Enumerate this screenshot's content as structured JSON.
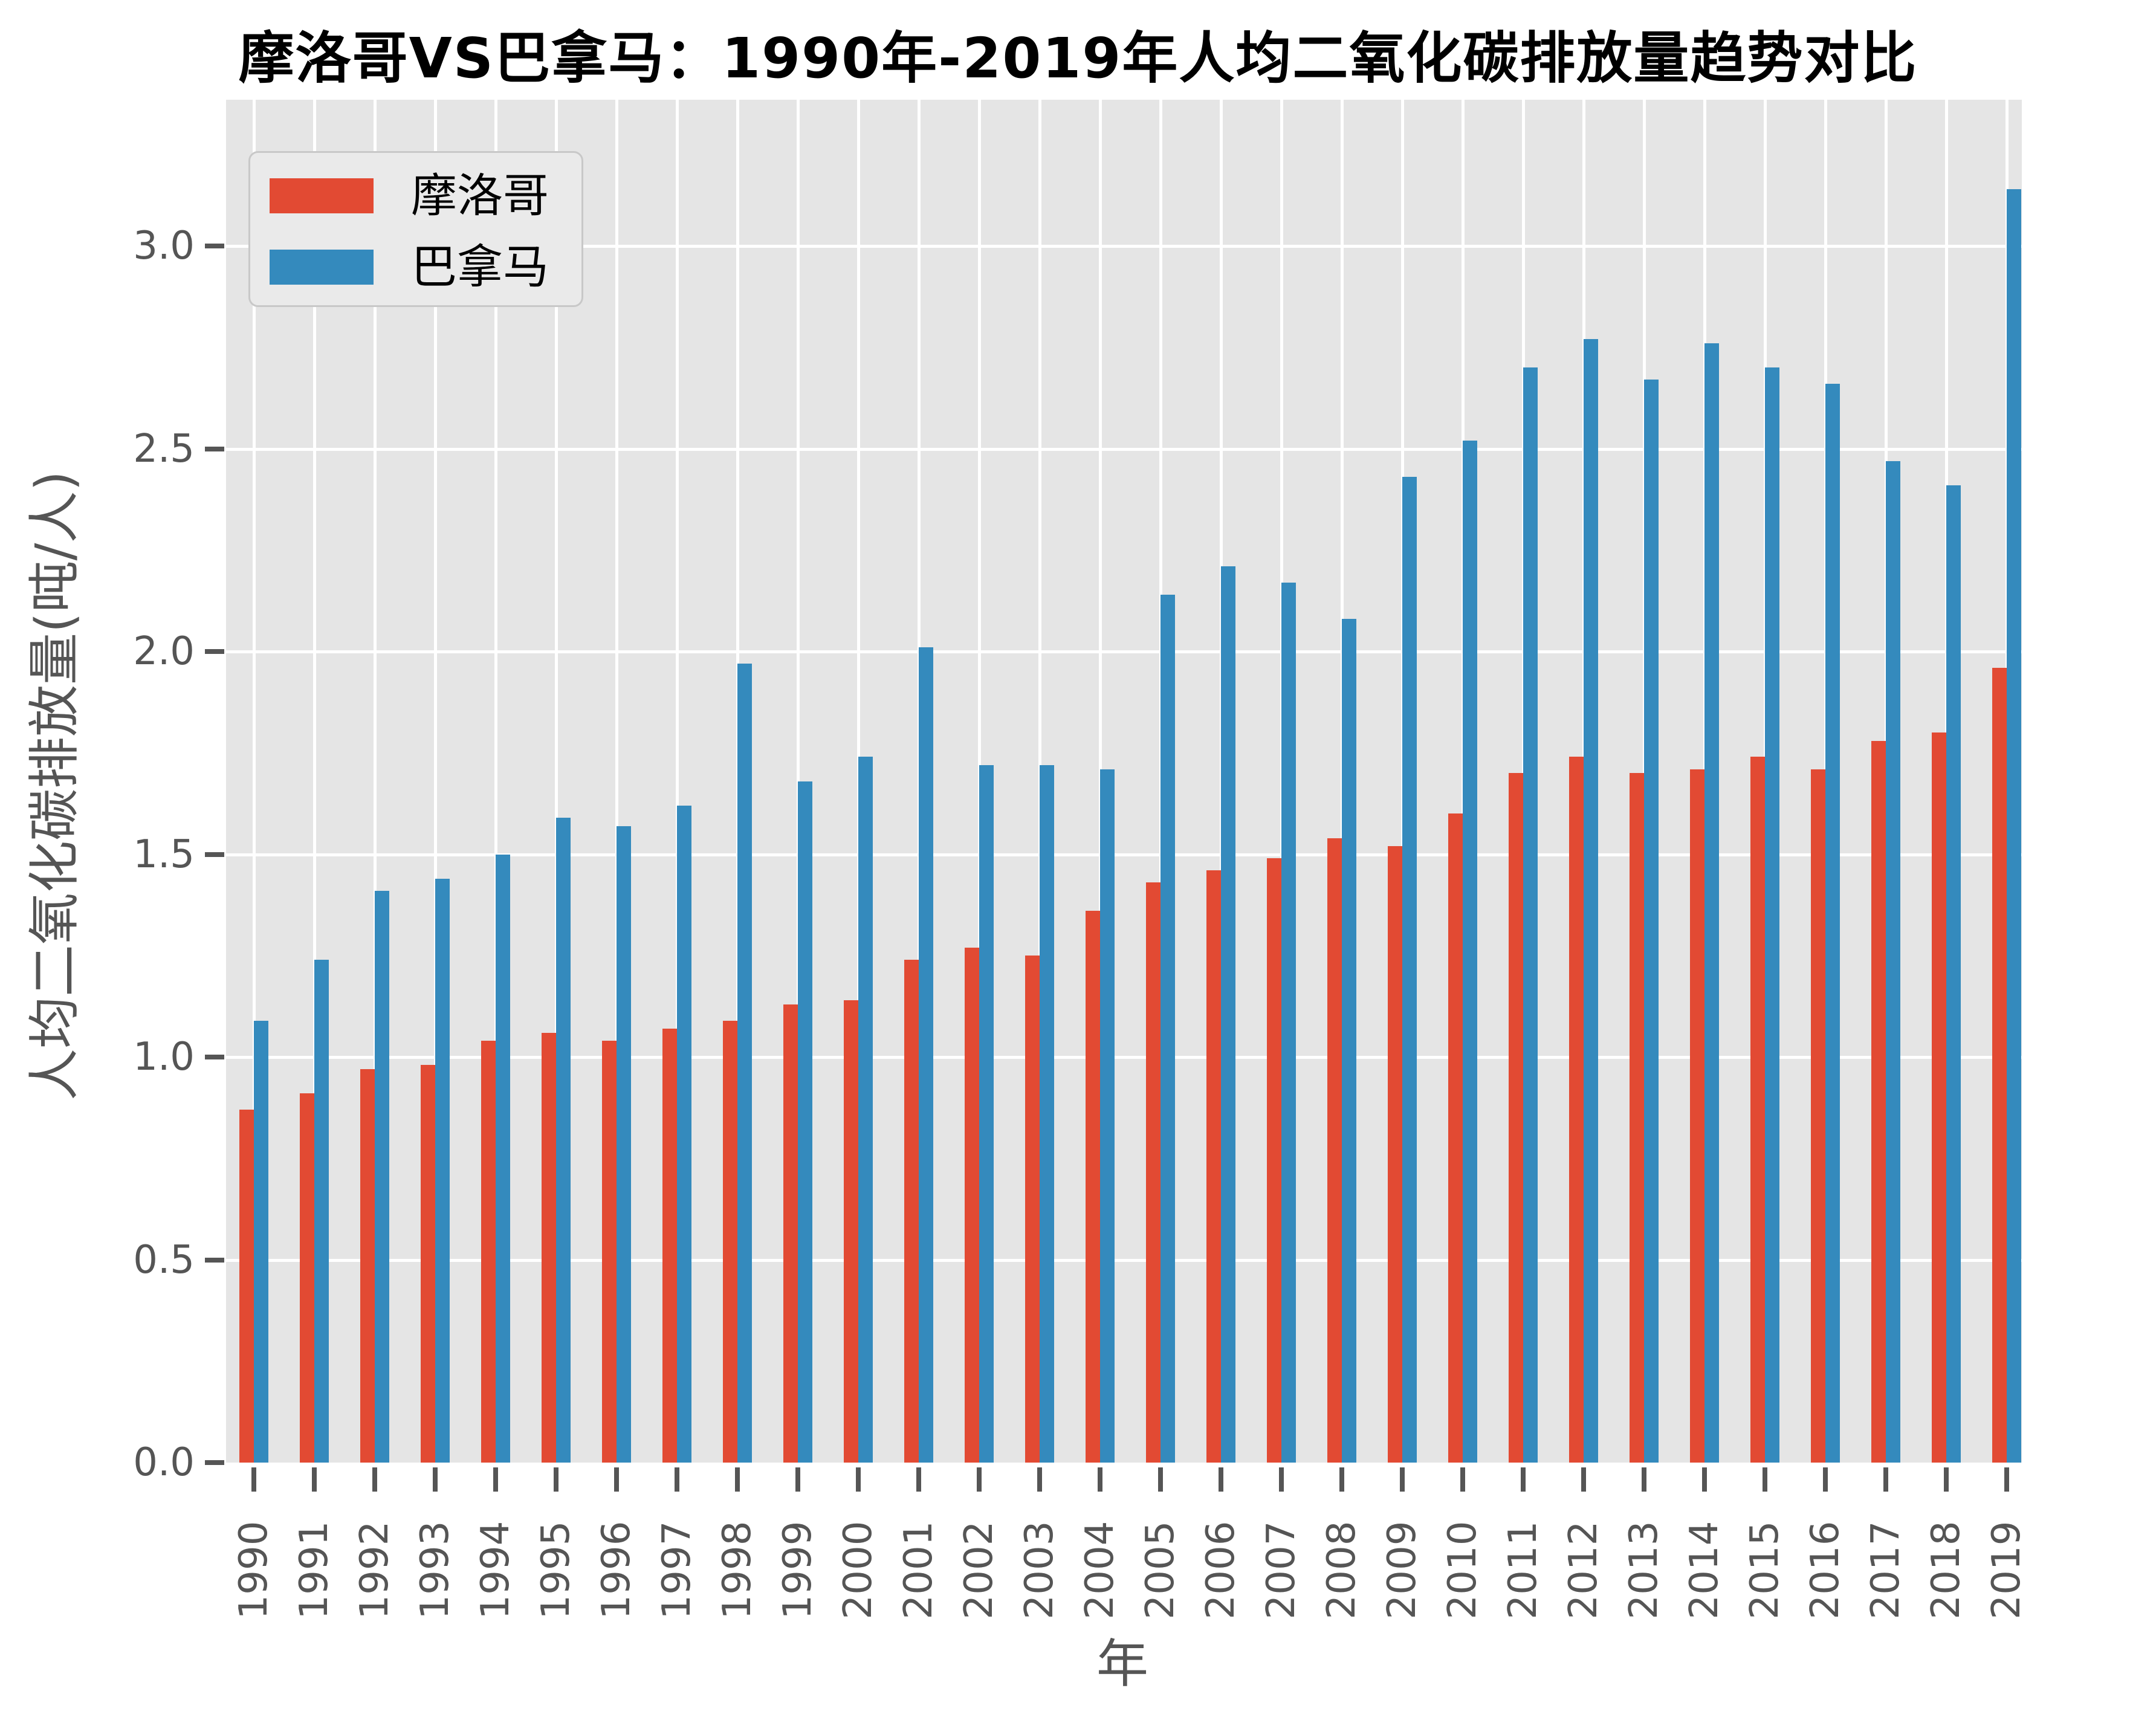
{
  "chart_data": {
    "type": "bar",
    "title": "摩洛哥VS巴拿马：1990年-2019年人均二氧化碳排放量趋势对比",
    "xlabel": "年",
    "ylabel": "人均二氧化碳排放量(吨/人)",
    "categories": [
      "1990",
      "1991",
      "1992",
      "1993",
      "1994",
      "1995",
      "1996",
      "1997",
      "1998",
      "1999",
      "2000",
      "2001",
      "2002",
      "2003",
      "2004",
      "2005",
      "2006",
      "2007",
      "2008",
      "2009",
      "2010",
      "2011",
      "2012",
      "2013",
      "2014",
      "2015",
      "2016",
      "2017",
      "2018",
      "2019"
    ],
    "series": [
      {
        "name": "摩洛哥",
        "color": "#E24A33",
        "values": [
          0.87,
          0.91,
          0.97,
          0.98,
          1.04,
          1.06,
          1.04,
          1.07,
          1.09,
          1.13,
          1.14,
          1.24,
          1.27,
          1.25,
          1.36,
          1.43,
          1.46,
          1.49,
          1.54,
          1.52,
          1.6,
          1.7,
          1.74,
          1.7,
          1.71,
          1.74,
          1.71,
          1.78,
          1.8,
          1.96
        ]
      },
      {
        "name": "巴拿马",
        "color": "#348ABD",
        "values": [
          1.09,
          1.24,
          1.41,
          1.44,
          1.5,
          1.59,
          1.57,
          1.62,
          1.97,
          1.68,
          1.74,
          2.01,
          1.72,
          1.72,
          1.71,
          2.14,
          2.21,
          2.17,
          2.08,
          2.43,
          2.52,
          2.7,
          2.77,
          2.67,
          2.76,
          2.7,
          2.66,
          2.47,
          2.41,
          3.14
        ]
      }
    ],
    "ylim": [
      0.0,
      3.36
    ],
    "yticks": [
      "0.0",
      "0.5",
      "1.0",
      "1.5",
      "2.0",
      "2.5",
      "3.0"
    ],
    "grid": true,
    "legend_position": "upper left",
    "plot_bg_color": "#E5E5E5",
    "grid_color": "#FFFFFF",
    "tick_text_color": "#555555",
    "title_color": "#000000"
  }
}
